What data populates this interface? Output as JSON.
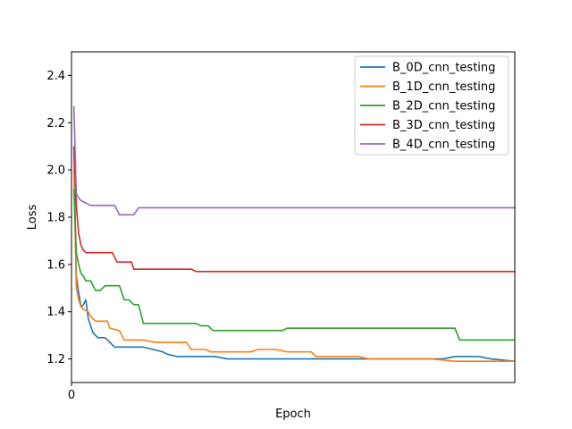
{
  "chart_data": {
    "type": "line",
    "xlabel": "Epoch",
    "ylabel": "Loss",
    "xlim": [
      0,
      185
    ],
    "ylim": [
      1.1,
      2.5
    ],
    "xticks": [
      0
    ],
    "yticks": [
      1.2,
      1.4,
      1.6,
      1.8,
      2.0,
      2.2,
      2.4
    ],
    "ytick_labels": [
      "1.2",
      "1.4",
      "1.6",
      "1.8",
      "2.0",
      "2.2",
      "2.4"
    ],
    "xtick_labels": [
      "0"
    ],
    "legend_position": "top-right",
    "series": [
      {
        "name": "B_0D_cnn_testing",
        "color": "#1f77b4",
        "points": [
          [
            1,
            2.1
          ],
          [
            2,
            1.55
          ],
          [
            3,
            1.48
          ],
          [
            4,
            1.42
          ],
          [
            5,
            1.43
          ],
          [
            6,
            1.45
          ],
          [
            7,
            1.37
          ],
          [
            8,
            1.34
          ],
          [
            9,
            1.31
          ],
          [
            10,
            1.3
          ],
          [
            11,
            1.29
          ],
          [
            14,
            1.29
          ],
          [
            16,
            1.27
          ],
          [
            18,
            1.25
          ],
          [
            20,
            1.25
          ],
          [
            25,
            1.25
          ],
          [
            30,
            1.25
          ],
          [
            34,
            1.24
          ],
          [
            38,
            1.23
          ],
          [
            40,
            1.22
          ],
          [
            44,
            1.21
          ],
          [
            48,
            1.21
          ],
          [
            60,
            1.21
          ],
          [
            65,
            1.2
          ],
          [
            130,
            1.2
          ],
          [
            140,
            1.2
          ],
          [
            155,
            1.2
          ],
          [
            160,
            1.21
          ],
          [
            170,
            1.21
          ],
          [
            175,
            1.2
          ],
          [
            185,
            1.19
          ]
        ]
      },
      {
        "name": "B_1D_cnn_testing",
        "color": "#ff7f0e",
        "points": [
          [
            1,
            2.0
          ],
          [
            2,
            1.5
          ],
          [
            3,
            1.45
          ],
          [
            4,
            1.42
          ],
          [
            5,
            1.41
          ],
          [
            7,
            1.4
          ],
          [
            8,
            1.38
          ],
          [
            10,
            1.36
          ],
          [
            15,
            1.36
          ],
          [
            16,
            1.33
          ],
          [
            20,
            1.32
          ],
          [
            22,
            1.28
          ],
          [
            30,
            1.28
          ],
          [
            35,
            1.27
          ],
          [
            48,
            1.27
          ],
          [
            50,
            1.24
          ],
          [
            56,
            1.24
          ],
          [
            58,
            1.23
          ],
          [
            75,
            1.23
          ],
          [
            78,
            1.24
          ],
          [
            85,
            1.24
          ],
          [
            90,
            1.23
          ],
          [
            100,
            1.23
          ],
          [
            102,
            1.21
          ],
          [
            120,
            1.21
          ],
          [
            124,
            1.2
          ],
          [
            150,
            1.2
          ],
          [
            160,
            1.19
          ],
          [
            185,
            1.19
          ]
        ]
      },
      {
        "name": "B_2D_cnn_testing",
        "color": "#2ca02c",
        "points": [
          [
            1,
            1.92
          ],
          [
            2,
            1.65
          ],
          [
            3,
            1.6
          ],
          [
            4,
            1.56
          ],
          [
            5,
            1.55
          ],
          [
            6,
            1.53
          ],
          [
            8,
            1.53
          ],
          [
            10,
            1.49
          ],
          [
            12,
            1.49
          ],
          [
            14,
            1.51
          ],
          [
            20,
            1.51
          ],
          [
            22,
            1.45
          ],
          [
            24,
            1.45
          ],
          [
            26,
            1.43
          ],
          [
            28,
            1.43
          ],
          [
            30,
            1.35
          ],
          [
            40,
            1.35
          ],
          [
            52,
            1.35
          ],
          [
            54,
            1.34
          ],
          [
            57,
            1.34
          ],
          [
            59,
            1.32
          ],
          [
            70,
            1.32
          ],
          [
            85,
            1.32
          ],
          [
            88,
            1.32
          ],
          [
            90,
            1.33
          ],
          [
            160,
            1.33
          ],
          [
            162,
            1.28
          ],
          [
            185,
            1.28
          ]
        ]
      },
      {
        "name": "B_3D_cnn_testing",
        "color": "#d62728",
        "points": [
          [
            1,
            2.1
          ],
          [
            2,
            1.85
          ],
          [
            3,
            1.73
          ],
          [
            4,
            1.68
          ],
          [
            5,
            1.66
          ],
          [
            6,
            1.65
          ],
          [
            10,
            1.65
          ],
          [
            17,
            1.65
          ],
          [
            19,
            1.61
          ],
          [
            25,
            1.61
          ],
          [
            26,
            1.58
          ],
          [
            40,
            1.58
          ],
          [
            50,
            1.58
          ],
          [
            52,
            1.57
          ],
          [
            185,
            1.57
          ]
        ]
      },
      {
        "name": "B_4D_cnn_testing",
        "color": "#9467bd",
        "points": [
          [
            1,
            2.27
          ],
          [
            2,
            1.9
          ],
          [
            3,
            1.88
          ],
          [
            4,
            1.87
          ],
          [
            6,
            1.86
          ],
          [
            8,
            1.85
          ],
          [
            10,
            1.85
          ],
          [
            18,
            1.85
          ],
          [
            20,
            1.81
          ],
          [
            26,
            1.81
          ],
          [
            28,
            1.84
          ],
          [
            40,
            1.84
          ],
          [
            185,
            1.84
          ]
        ]
      }
    ]
  }
}
